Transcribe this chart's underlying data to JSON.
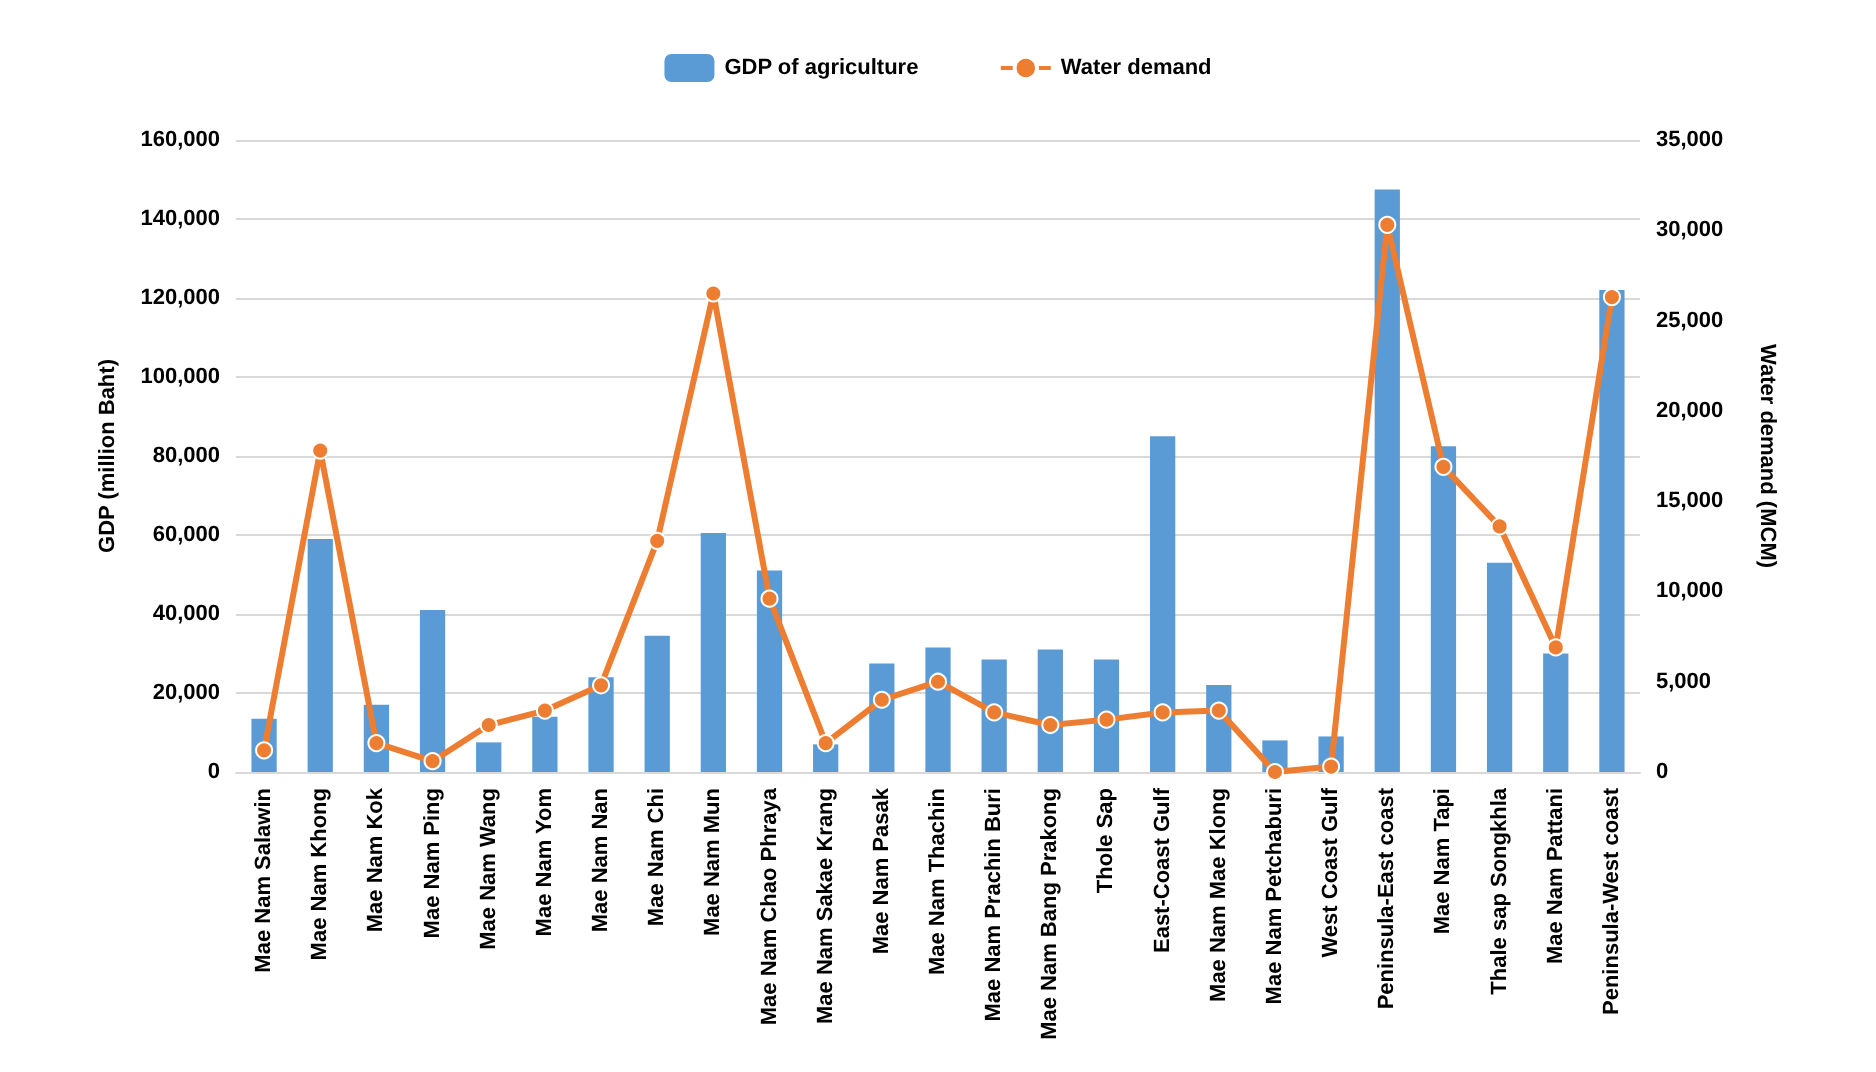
{
  "chart_data": {
    "type": "bar",
    "ylabel": "GDP (million Baht)",
    "y2label": "Water demand (MCM)",
    "categories": [
      "Mae Nam Salawin",
      "Mae Nam Khong",
      "Mae Nam Kok",
      "Mae Nam Ping",
      "Mae Nam Wang",
      "Mae Nam Yom",
      "Mae Nam Nan",
      "Mae Nam Chi",
      "Mae Nam Mun",
      "Mae Nam Chao Phraya",
      "Mae Nam Sakae Krang",
      "Mae Nam Pasak",
      "Mae Nam Thachin",
      "Mae Nam Prachin Buri",
      "Mae Nam Bang Prakong",
      "Thole Sap",
      "East-Coast Gulf",
      "Mae Nam Mae Klong",
      "Mae Nam Petchaburi",
      "West Coast Gulf",
      "Peninsula-East coast",
      "Mae Nam Tapi",
      "Thale sap Songkhla",
      "Mae Nam Pattani",
      "Peninsula-West coast"
    ],
    "series": [
      {
        "name": "GDP of agriculture",
        "color": "#5b9bd5",
        "values": [
          13500,
          59000,
          17000,
          41000,
          7500,
          14000,
          24000,
          34500,
          60500,
          51000,
          7000,
          27500,
          31500,
          28500,
          31000,
          28500,
          85000,
          22000,
          8000,
          9000,
          147500,
          82500,
          53000,
          30000,
          122000
        ]
      },
      {
        "name": "Water demand",
        "type": "line",
        "axis": "y2",
        "color": "#ed7d31",
        "marker": "circle",
        "values": [
          1200,
          17800,
          1600,
          600,
          2600,
          3400,
          4800,
          12800,
          26500,
          9600,
          1600,
          4000,
          5000,
          3300,
          2600,
          2900,
          3300,
          3400,
          0,
          300,
          30300,
          16900,
          13600,
          6900,
          26300
        ]
      }
    ],
    "ylim": [
      0,
      160000
    ],
    "yticks": [
      0,
      {
        "value": 20000,
        "label": "20,000"
      },
      {
        "value": 40000,
        "label": "40,000"
      },
      {
        "value": 60000,
        "label": "60,000"
      },
      {
        "value": 80000,
        "label": "80,000"
      },
      {
        "value": 100000,
        "label": "100,000"
      },
      {
        "value": 120000,
        "label": "120,000"
      },
      {
        "value": 140000,
        "label": "140,000"
      },
      {
        "value": 160000,
        "label": "160,000"
      }
    ],
    "y2lim": [
      0,
      35000
    ],
    "y2ticks": [
      0,
      {
        "value": 5000,
        "label": "5,000"
      },
      {
        "value": 10000,
        "label": "10,000"
      },
      {
        "value": 15000,
        "label": "15,000"
      },
      {
        "value": 20000,
        "label": "20,000"
      },
      {
        "value": 25000,
        "label": "25,000"
      },
      {
        "value": 30000,
        "label": "30,000"
      },
      {
        "value": 35000,
        "label": "35,000"
      }
    ],
    "grid": "y",
    "legend": "top"
  }
}
